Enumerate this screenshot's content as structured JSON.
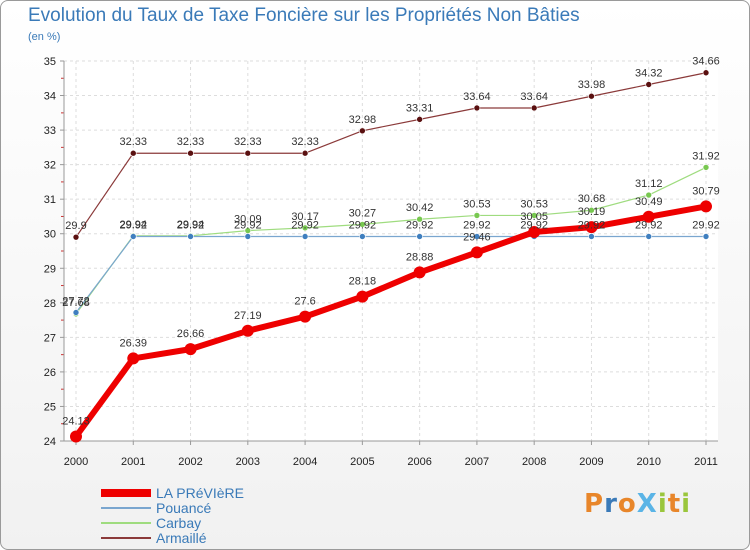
{
  "logo_text": "ProXiti",
  "chart_data": {
    "type": "line",
    "title": "Evolution du Taux de Taxe Foncière sur les Propriétés Non Bâties",
    "ylabel": "(en %)",
    "xlabel": "",
    "ylim": [
      24,
      35
    ],
    "grid": true,
    "yticks": [
      "24",
      "25",
      "26",
      "27",
      "28",
      "29",
      "30",
      "31",
      "32",
      "33",
      "34",
      "35"
    ],
    "categories": [
      "2000",
      "2001",
      "2002",
      "2003",
      "2004",
      "2005",
      "2006",
      "2007",
      "2008",
      "2009",
      "2010",
      "2011"
    ],
    "legend_position": "bottom-left",
    "series": [
      {
        "name": "Armaillé",
        "color": "#8b3a3a",
        "marker": "#5a1010",
        "values": [
          29.9,
          32.33,
          32.33,
          32.33,
          32.33,
          32.98,
          33.31,
          33.64,
          33.64,
          33.98,
          34.32,
          34.66
        ],
        "labels": [
          "29.9",
          "32.33",
          "32.33",
          "32.33",
          "32.33",
          "32.98",
          "33.31",
          "33.64",
          "33.64",
          "33.98",
          "34.32",
          "34.66"
        ]
      },
      {
        "name": "Carbay",
        "color": "#9fdc7f",
        "marker": "#78c850",
        "values": [
          27.68,
          29.94,
          29.94,
          30.09,
          30.17,
          30.27,
          30.42,
          30.53,
          30.53,
          30.68,
          31.12,
          31.92
        ],
        "labels": [
          "27.68",
          "29.94",
          "29.94",
          "30.09",
          "30.17",
          "30.27",
          "30.42",
          "30.53",
          "30.53",
          "30.68",
          "31.12",
          "31.92"
        ]
      },
      {
        "name": "Pouancé",
        "color": "#7aa6cf",
        "marker": "#3f7fbf",
        "values": [
          27.72,
          29.92,
          29.92,
          29.92,
          29.92,
          29.92,
          29.92,
          29.92,
          29.92,
          29.92,
          29.92,
          29.92
        ],
        "labels": [
          "27.72",
          "29.92",
          "29.92",
          "29.92",
          "29.92",
          "29.92",
          "29.92",
          "29.92",
          "29.92",
          "29.92",
          "29.92",
          "29.92"
        ]
      },
      {
        "name": "LA PRéVIèRE",
        "color": "#ee0000",
        "marker": "#ee0000",
        "values": [
          24.13,
          26.39,
          26.66,
          27.19,
          27.6,
          28.18,
          28.88,
          29.46,
          30.05,
          30.19,
          30.49,
          30.79
        ],
        "labels": [
          "24.13",
          "26.39",
          "26.66",
          "27.19",
          "27.6",
          "28.18",
          "28.88",
          "29.46",
          "30.05",
          "30.19",
          "30.49",
          "30.79"
        ]
      }
    ]
  }
}
